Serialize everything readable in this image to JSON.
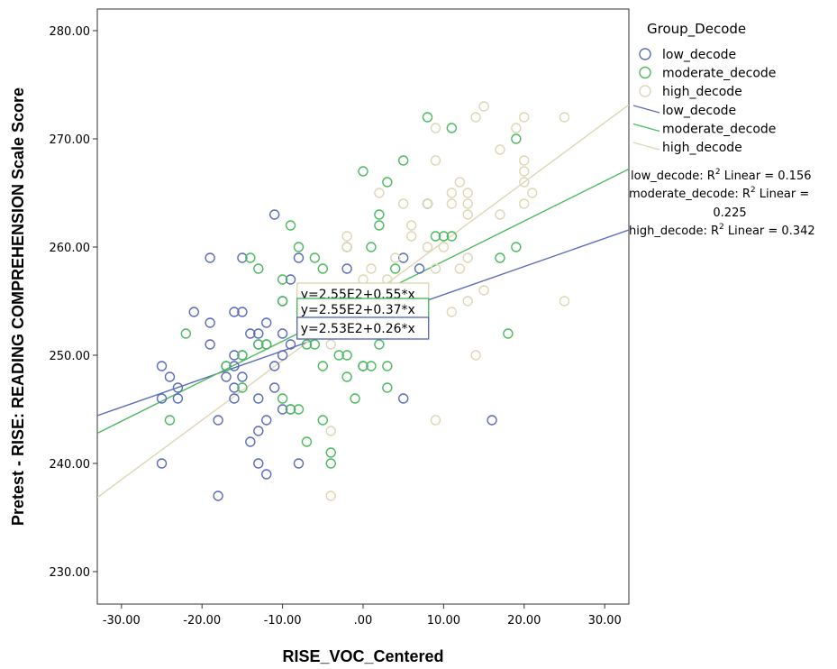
{
  "chart_data": {
    "type": "scatter",
    "xlabel": "RISE_VOC_Centered",
    "ylabel": "Pretest - RISE: READING COMPREHENSION Scale Score",
    "xlim": [
      -33,
      33
    ],
    "ylim": [
      227,
      282
    ],
    "xticks": [
      -30,
      -20,
      -10,
      0,
      10,
      20,
      30
    ],
    "xtick_labels": [
      "-30.00",
      "-20.00",
      "-10.00",
      ".00",
      "10.00",
      "20.00",
      "30.00"
    ],
    "yticks": [
      230,
      240,
      250,
      260,
      270,
      280
    ],
    "ytick_labels": [
      "230.00",
      "240.00",
      "250.00",
      "260.00",
      "270.00",
      "280.00"
    ],
    "grid": false,
    "legend": {
      "title": "Group_Decode",
      "placement": "right",
      "markers": [
        "low_decode",
        "moderate_decode",
        "high_decode"
      ],
      "lines": [
        "low_decode",
        "moderate_decode",
        "high_decode"
      ]
    },
    "r2_annotations": [
      {
        "prefix": "low_decode: R",
        "sup": "2",
        "suffix": " Linear = 0.156"
      },
      {
        "prefix": "moderate_decode: R",
        "sup": "2",
        "suffix": " Linear =",
        "cont": "0.225"
      },
      {
        "prefix": "high_decode: R",
        "sup": "2",
        "suffix": " Linear = 0.342"
      }
    ],
    "series": [
      {
        "name": "low_decode",
        "color": "#5b6db8",
        "fit": {
          "intercept": 253.0,
          "slope": 0.26
        },
        "points": [
          [
            -25,
            249
          ],
          [
            -24,
            248
          ],
          [
            -23,
            247
          ],
          [
            -23,
            246
          ],
          [
            -25,
            246
          ],
          [
            -25,
            240
          ],
          [
            -21,
            254
          ],
          [
            -19,
            253
          ],
          [
            -19,
            251
          ],
          [
            -19,
            259
          ],
          [
            -18,
            244
          ],
          [
            -18,
            237
          ],
          [
            -17,
            249
          ],
          [
            -17,
            248
          ],
          [
            -16,
            254
          ],
          [
            -16,
            250
          ],
          [
            -16,
            249
          ],
          [
            -16,
            247
          ],
          [
            -16,
            246
          ],
          [
            -15,
            259
          ],
          [
            -15,
            254
          ],
          [
            -15,
            250
          ],
          [
            -15,
            248
          ],
          [
            -14,
            242
          ],
          [
            -14,
            252
          ],
          [
            -13,
            252
          ],
          [
            -13,
            251
          ],
          [
            -13,
            246
          ],
          [
            -13,
            243
          ],
          [
            -13,
            240
          ],
          [
            -12,
            253
          ],
          [
            -12,
            251
          ],
          [
            -12,
            244
          ],
          [
            -12,
            239
          ],
          [
            -11,
            263
          ],
          [
            -11,
            249
          ],
          [
            -11,
            247
          ],
          [
            -10,
            252
          ],
          [
            -10,
            250
          ],
          [
            -10,
            255
          ],
          [
            -10,
            245
          ],
          [
            -9,
            257
          ],
          [
            -9,
            251
          ],
          [
            -9,
            245
          ],
          [
            -8,
            259
          ],
          [
            -8,
            240
          ],
          [
            -2,
            258
          ],
          [
            -1,
            252
          ],
          [
            0,
            249
          ],
          [
            2,
            255
          ],
          [
            4,
            252
          ],
          [
            5,
            259
          ],
          [
            5,
            246
          ],
          [
            7,
            258
          ],
          [
            8,
            264
          ],
          [
            16,
            244
          ]
        ]
      },
      {
        "name": "moderate_decode",
        "color": "#4cba5e",
        "fit": {
          "intercept": 255.0,
          "slope": 0.37
        },
        "points": [
          [
            -24,
            244
          ],
          [
            -22,
            252
          ],
          [
            -17,
            249
          ],
          [
            -15,
            250
          ],
          [
            -15,
            247
          ],
          [
            -14,
            259
          ],
          [
            -13,
            258
          ],
          [
            -13,
            251
          ],
          [
            -12,
            251
          ],
          [
            -10,
            257
          ],
          [
            -10,
            246
          ],
          [
            -10,
            255
          ],
          [
            -9,
            262
          ],
          [
            -9,
            245
          ],
          [
            -8,
            260
          ],
          [
            -8,
            245
          ],
          [
            -7,
            242
          ],
          [
            -7,
            255
          ],
          [
            -7,
            251
          ],
          [
            -6,
            259
          ],
          [
            -6,
            251
          ],
          [
            -5,
            258
          ],
          [
            -5,
            249
          ],
          [
            -5,
            244
          ],
          [
            -4,
            241
          ],
          [
            -4,
            240
          ],
          [
            -3,
            250
          ],
          [
            -2,
            260
          ],
          [
            -2,
            250
          ],
          [
            -2,
            248
          ],
          [
            -1,
            246
          ],
          [
            0,
            267
          ],
          [
            0,
            249
          ],
          [
            1,
            260
          ],
          [
            1,
            249
          ],
          [
            2,
            263
          ],
          [
            2,
            262
          ],
          [
            2,
            251
          ],
          [
            3,
            266
          ],
          [
            3,
            249
          ],
          [
            3,
            247
          ],
          [
            4,
            258
          ],
          [
            5,
            268
          ],
          [
            8,
            272
          ],
          [
            8,
            264
          ],
          [
            9,
            261
          ],
          [
            10,
            261
          ],
          [
            11,
            271
          ],
          [
            11,
            261
          ],
          [
            17,
            259
          ],
          [
            18,
            252
          ],
          [
            19,
            270
          ],
          [
            19,
            260
          ]
        ]
      },
      {
        "name": "high_decode",
        "color": "#ddd7b5",
        "fit": {
          "intercept": 255.0,
          "slope": 0.55
        },
        "points": [
          [
            -4,
            237
          ],
          [
            -4,
            243
          ],
          [
            -4,
            251
          ],
          [
            -2,
            261
          ],
          [
            -2,
            260
          ],
          [
            0,
            257
          ],
          [
            1,
            258
          ],
          [
            2,
            265
          ],
          [
            3,
            257
          ],
          [
            4,
            259
          ],
          [
            5,
            264
          ],
          [
            6,
            262
          ],
          [
            6,
            261
          ],
          [
            7,
            256
          ],
          [
            8,
            264
          ],
          [
            8,
            260
          ],
          [
            9,
            268
          ],
          [
            9,
            258
          ],
          [
            9,
            244
          ],
          [
            9,
            271
          ],
          [
            10,
            260
          ],
          [
            11,
            265
          ],
          [
            11,
            264
          ],
          [
            11,
            254
          ],
          [
            12,
            266
          ],
          [
            12,
            258
          ],
          [
            13,
            265
          ],
          [
            13,
            264
          ],
          [
            13,
            263
          ],
          [
            13,
            259
          ],
          [
            13,
            255
          ],
          [
            14,
            272
          ],
          [
            14,
            250
          ],
          [
            15,
            273
          ],
          [
            15,
            256
          ],
          [
            17,
            269
          ],
          [
            17,
            263
          ],
          [
            19,
            271
          ],
          [
            20,
            272
          ],
          [
            20,
            268
          ],
          [
            20,
            267
          ],
          [
            20,
            266
          ],
          [
            20,
            264
          ],
          [
            21,
            265
          ],
          [
            25,
            272
          ],
          [
            25,
            255
          ]
        ]
      }
    ],
    "fit_labels": [
      {
        "series": "high_decode",
        "text": "y=2.55E2+0.55*x",
        "border": "#ddd7b5"
      },
      {
        "series": "moderate_decode",
        "text": "y=2.55E2+0.37*x",
        "border": "#4cba5e"
      },
      {
        "series": "low_decode",
        "text": "y=2.53E2+0.26*x",
        "border": "#5b6db8"
      }
    ]
  }
}
